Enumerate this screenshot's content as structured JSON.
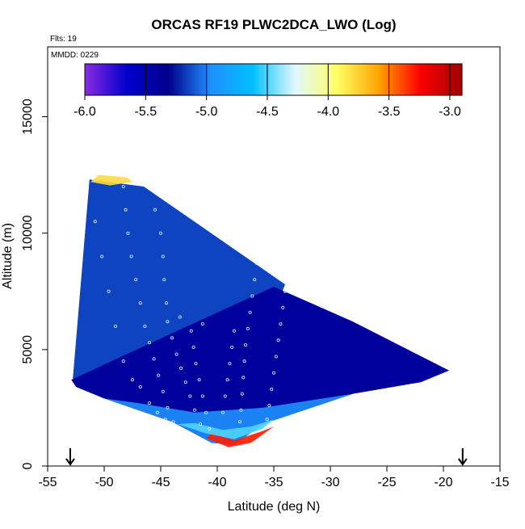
{
  "chart_data": {
    "type": "heatmap",
    "title": "ORCAS RF19 PLWC2DCA_LWO (Log)",
    "xlabel": "Latitude (deg N)",
    "ylabel": "Altitude (m)",
    "xlim": [
      -55,
      -15
    ],
    "ylim": [
      0,
      18000
    ],
    "x_ticks": [
      -55,
      -50,
      -45,
      -40,
      -35,
      -30,
      -25,
      -20,
      -15
    ],
    "y_ticks": [
      0,
      5000,
      10000,
      15000
    ],
    "annotations": {
      "flights": "Flts: 19",
      "mmdd": "MMDD: 0229"
    },
    "colorbar": {
      "range": [
        -6.0,
        -2.9
      ],
      "ticks": [
        -6.0,
        -5.5,
        -5.0,
        -4.5,
        -4.0,
        -3.5,
        -3.0
      ],
      "tick_labels": [
        "-6.0",
        "-5.5",
        "-5.0",
        "-4.5",
        "-4.0",
        "-3.5",
        "-3.0"
      ],
      "colors": [
        "#8a2be2",
        "#0000cd",
        "#00008b",
        "#1e90ff",
        "#00bfff",
        "#e0f7ff",
        "#ffff66",
        "#ffa500",
        "#ff0000",
        "#a00000"
      ]
    },
    "arrows_lat": [
      -53,
      -18.3
    ],
    "regions": [
      {
        "name": "upper",
        "value": -5.15,
        "polygon": [
          [
            -52.8,
            3600
          ],
          [
            -51.3,
            12300
          ],
          [
            -46.5,
            12000
          ],
          [
            -34,
            7800
          ],
          [
            -34.5,
            7200
          ],
          [
            -43,
            5700
          ],
          [
            -50,
            4200
          ]
        ]
      },
      {
        "name": "lower",
        "value": -5.4,
        "polygon": [
          [
            -52.9,
            3700
          ],
          [
            -44,
            5700
          ],
          [
            -35,
            7700
          ],
          [
            -28,
            6200
          ],
          [
            -19.5,
            4100
          ],
          [
            -22,
            3600
          ],
          [
            -28,
            3100
          ],
          [
            -36,
            1800
          ],
          [
            -38.5,
            900
          ],
          [
            -40.5,
            1000
          ],
          [
            -44,
            1900
          ],
          [
            -50,
            2900
          ],
          [
            -52.5,
            3400
          ]
        ]
      },
      {
        "name": "bottom",
        "value": -5.0,
        "polygon": [
          [
            -50,
            2900
          ],
          [
            -44,
            1900
          ],
          [
            -40.5,
            1000
          ],
          [
            -38.5,
            900
          ],
          [
            -36,
            1800
          ],
          [
            -28,
            3100
          ],
          [
            -36,
            2500
          ],
          [
            -42,
            2300
          ],
          [
            -47,
            2700
          ]
        ]
      }
    ],
    "high_bands": [
      {
        "value": -3.3,
        "polygon": [
          [
            -41,
            1200
          ],
          [
            -39,
            800
          ],
          [
            -37,
            1000
          ],
          [
            -35,
            1700
          ],
          [
            -36,
            1500
          ],
          [
            -38.5,
            1100
          ],
          [
            -40.5,
            1400
          ]
        ]
      },
      {
        "value": -3.8,
        "polygon": [
          [
            -51.2,
            12200
          ],
          [
            -50.5,
            12500
          ],
          [
            -48,
            12400
          ],
          [
            -47.5,
            12200
          ],
          [
            -49.5,
            12050
          ]
        ]
      },
      {
        "value": -4.5,
        "polygon": [
          [
            -43.5,
            1800
          ],
          [
            -41,
            1400
          ],
          [
            -38.5,
            1150
          ],
          [
            -36,
            1600
          ],
          [
            -35,
            2000
          ],
          [
            -37,
            1700
          ],
          [
            -39.5,
            1550
          ],
          [
            -42,
            1850
          ]
        ]
      }
    ],
    "flight_track": [
      [
        -51.5,
        12100
      ],
      [
        -50.8,
        10500
      ],
      [
        -50.2,
        9000
      ],
      [
        -49.6,
        7500
      ],
      [
        -49.0,
        6000
      ],
      [
        -48.3,
        4500
      ],
      [
        -47.5,
        3700
      ],
      [
        -46.8,
        3400
      ],
      [
        -46.0,
        2700
      ],
      [
        -45.3,
        2300
      ],
      [
        -44.6,
        2000
      ],
      [
        -43.9,
        1900
      ],
      [
        -44.4,
        2500
      ],
      [
        -44.8,
        3200
      ],
      [
        -45.2,
        3900
      ],
      [
        -45.6,
        4600
      ],
      [
        -46.0,
        5300
      ],
      [
        -46.4,
        6000
      ],
      [
        -46.8,
        7000
      ],
      [
        -47.2,
        8000
      ],
      [
        -47.6,
        9000
      ],
      [
        -47.9,
        10000
      ],
      [
        -48.1,
        11000
      ],
      [
        -48.3,
        12000
      ],
      [
        -45.5,
        11000
      ],
      [
        -45.0,
        10000
      ],
      [
        -44.8,
        9000
      ],
      [
        -44.7,
        8000
      ],
      [
        -44.5,
        7000
      ],
      [
        -44.4,
        6200
      ],
      [
        -44.0,
        5500
      ],
      [
        -43.6,
        4800
      ],
      [
        -43.2,
        4200
      ],
      [
        -42.8,
        3600
      ],
      [
        -42.4,
        3000
      ],
      [
        -42.0,
        2400
      ],
      [
        -41.5,
        1800
      ],
      [
        -40.7,
        1600
      ],
      [
        -41.0,
        2300
      ],
      [
        -41.3,
        3000
      ],
      [
        -41.6,
        3700
      ],
      [
        -41.9,
        4400
      ],
      [
        -42.1,
        5100
      ],
      [
        -42.3,
        5800
      ],
      [
        -38.5,
        5800
      ],
      [
        -38.7,
        5100
      ],
      [
        -38.9,
        4400
      ],
      [
        -39.1,
        3700
      ],
      [
        -39.3,
        3000
      ],
      [
        -39.5,
        2300
      ],
      [
        -36.5,
        8700
      ],
      [
        -36.7,
        8000
      ],
      [
        -36.9,
        7300
      ],
      [
        -37.1,
        6600
      ],
      [
        -37.3,
        5900
      ],
      [
        -37.5,
        5200
      ],
      [
        -37.6,
        4500
      ],
      [
        -37.7,
        3800
      ],
      [
        -37.8,
        3100
      ],
      [
        -37.9,
        2400
      ],
      [
        -38.0,
        1900
      ],
      [
        -34.0,
        7500
      ],
      [
        -34.2,
        6800
      ],
      [
        -34.4,
        6100
      ],
      [
        -34.6,
        5400
      ],
      [
        -34.8,
        4700
      ],
      [
        -35.0,
        4000
      ],
      [
        -35.2,
        3300
      ],
      [
        -35.4,
        2600
      ],
      [
        -35.6,
        2000
      ],
      [
        -43.3,
        6400
      ],
      [
        -41.3,
        6100
      ]
    ]
  }
}
